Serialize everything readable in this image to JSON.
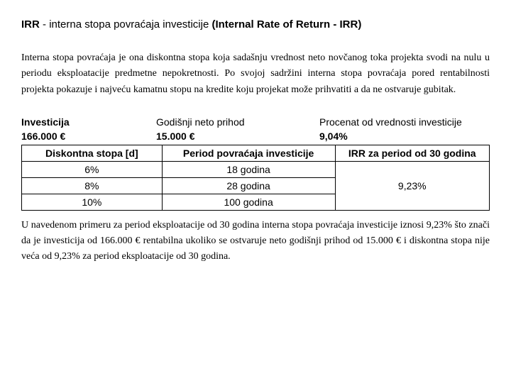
{
  "title": {
    "part1": "IRR",
    "sep": " - ",
    "mid": "interna stopa povraćaja investicije ",
    "end": "(Internal Rate of Return - IRR)"
  },
  "intro_paragraph": "Interna stopa povraćaja je ona diskontna stopa koja sadašnju vrednost neto novčanog toka projekta svodi na nulu u periodu eksploatacije predmetne nepokretnosti. Po svojoj sadržini interna stopa povraćaja pored rentabilnosti projekta pokazuje i najveću kamatnu stopu na kredite koju projekat može prihvatiti a da ne ostvaruje gubitak.",
  "info": {
    "label1": "Investicija",
    "val1": "166.000 €",
    "label2": "Godišnji neto prihod",
    "val2": "15.000 €",
    "label3": "Procenat od vrednosti investicije",
    "val3": "9,04%"
  },
  "table": {
    "headers": [
      "Diskontna stopa [d]",
      "Period povraćaja investicije",
      "IRR za period od 30 godina"
    ],
    "rows": [
      [
        "6%",
        "18 godina"
      ],
      [
        "8%",
        "28 godina"
      ],
      [
        "10%",
        "100 godina"
      ]
    ],
    "merged_irr": "9,23%"
  },
  "conclusion": "U navedenom primeru  za period eksploatacije od 30 godina interna stopa povraćaja investicije iznosi 9,23% što znači da je investicija od 166.000 € rentabilna ukoliko se ostvaruje neto godišnji prihod od 15.000 € i diskontna stopa nije veća od  9,23% za period eksploatacije od 30 godina."
}
